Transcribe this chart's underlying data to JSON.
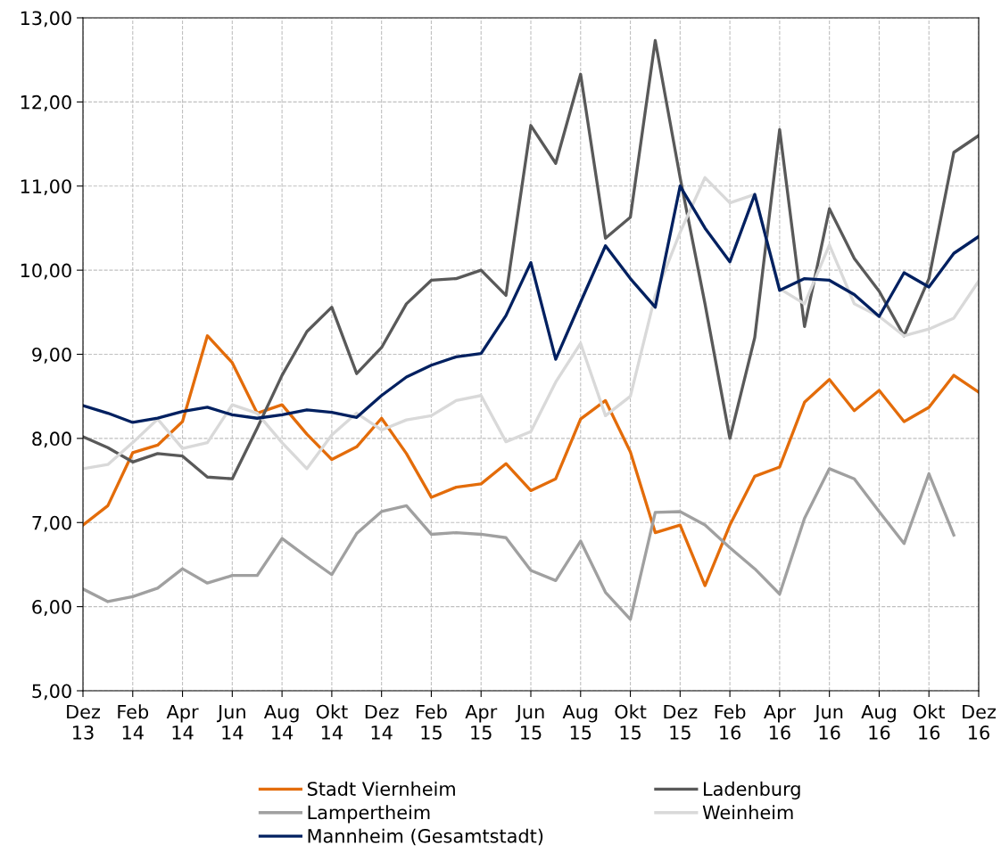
{
  "chart_data": {
    "type": "line",
    "categories": [
      "Dez\n13",
      null,
      "Feb\n14",
      null,
      "Apr\n14",
      null,
      "Jun\n14",
      null,
      "Aug\n14",
      null,
      "Okt\n14",
      null,
      "Dez\n14",
      null,
      "Feb\n15",
      null,
      "Apr\n15",
      null,
      "Jun\n15",
      null,
      "Aug\n15",
      null,
      "Okt\n15",
      null,
      "Dez\n15",
      null,
      "Feb\n16",
      null,
      "Apr\n16",
      null,
      "Jun\n16",
      null,
      "Aug\n16",
      null,
      "Okt\n16",
      null,
      "Dez\n16"
    ],
    "series": [
      {
        "name": "Stadt Viernheim",
        "color": "#e36c0a",
        "values": [
          6.97,
          7.2,
          7.83,
          7.92,
          8.2,
          9.22,
          8.9,
          8.3,
          8.4,
          8.05,
          7.75,
          7.9,
          8.24,
          7.82,
          7.3,
          7.42,
          7.46,
          7.7,
          7.38,
          7.52,
          8.23,
          8.45,
          7.84,
          6.88,
          6.97,
          6.25,
          6.97,
          7.55,
          7.66,
          8.43,
          8.7,
          8.33,
          8.57,
          8.2,
          8.37,
          8.75,
          8.55
        ]
      },
      {
        "name": "Ladenburg",
        "color": "#595959",
        "values": [
          8.02,
          7.89,
          7.72,
          7.82,
          7.79,
          7.54,
          7.52,
          8.12,
          8.75,
          9.27,
          9.56,
          8.77,
          9.08,
          9.6,
          9.88,
          9.9,
          10.0,
          9.7,
          11.72,
          11.27,
          12.33,
          10.38,
          10.63,
          12.73,
          11.1,
          9.6,
          8.0,
          9.2,
          11.67,
          9.33,
          10.73,
          10.14,
          9.75,
          9.22,
          9.9,
          11.4,
          11.6
        ]
      },
      {
        "name": "Lampertheim",
        "color": "#a0a0a0",
        "values": [
          6.21,
          6.06,
          6.12,
          6.22,
          6.45,
          6.28,
          6.37,
          6.37,
          6.81,
          6.59,
          6.38,
          6.87,
          7.13,
          7.2,
          6.86,
          6.88,
          6.86,
          6.82,
          6.43,
          6.31,
          6.78,
          6.17,
          5.85,
          7.12,
          7.13,
          6.97,
          6.7,
          6.45,
          6.15,
          7.05,
          7.64,
          7.52,
          7.13,
          6.75,
          7.58,
          6.85,
          null
        ]
      },
      {
        "name": "Weinheim",
        "color": "#d9d9d9",
        "values": [
          7.64,
          7.69,
          7.95,
          8.23,
          7.88,
          7.95,
          8.4,
          8.3,
          7.95,
          7.64,
          8.04,
          8.3,
          8.1,
          8.22,
          8.27,
          8.45,
          8.51,
          7.96,
          8.08,
          8.67,
          9.13,
          8.27,
          8.5,
          9.7,
          10.45,
          11.1,
          10.8,
          10.9,
          9.78,
          9.6,
          10.3,
          9.6,
          9.45,
          9.22,
          9.3,
          9.43,
          9.87
        ]
      },
      {
        "name": "Mannheim (Gesamtstadt)",
        "color": "#002060",
        "values": [
          8.39,
          8.3,
          8.19,
          8.24,
          8.32,
          8.37,
          8.28,
          8.24,
          8.28,
          8.34,
          8.31,
          8.25,
          8.51,
          8.73,
          8.87,
          8.97,
          9.01,
          9.46,
          10.09,
          8.94,
          9.62,
          10.29,
          9.9,
          9.56,
          11.0,
          10.5,
          10.1,
          10.9,
          9.76,
          9.9,
          9.88,
          9.71,
          9.45,
          9.97,
          9.8,
          10.2,
          10.4
        ]
      }
    ],
    "ylim": [
      5,
      13
    ],
    "yticks": [
      {
        "value": 5,
        "label": "5,00"
      },
      {
        "value": 6,
        "label": "6,00"
      },
      {
        "value": 7,
        "label": "7,00"
      },
      {
        "value": 8,
        "label": "8,00"
      },
      {
        "value": 9,
        "label": "9,00"
      },
      {
        "value": 10,
        "label": "10,00"
      },
      {
        "value": 11,
        "label": "11,00"
      },
      {
        "value": 12,
        "label": "12,00"
      },
      {
        "value": 13,
        "label": "13,00"
      }
    ],
    "grid": true,
    "legend": "bottom",
    "marker": "none",
    "line_style": "solid"
  }
}
